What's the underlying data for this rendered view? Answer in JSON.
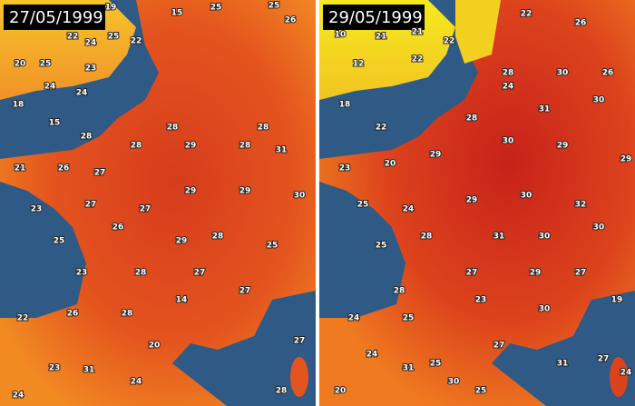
{
  "panels": [
    {
      "date": "27/05/1999",
      "stations": [
        19,
        15,
        25,
        25,
        26,
        22,
        24,
        25,
        22,
        20,
        25,
        23,
        18,
        24,
        24,
        15,
        28,
        28,
        28,
        21,
        26,
        27,
        28,
        29,
        28,
        31,
        23,
        27,
        27,
        29,
        29,
        30,
        25,
        26,
        29,
        28,
        25,
        23,
        28,
        27,
        27,
        22,
        26,
        28,
        14,
        20,
        23,
        31,
        24,
        28,
        24,
        27
      ]
    },
    {
      "date": "29/05/1999",
      "stations": [
        10,
        21,
        21,
        22,
        22,
        26,
        12,
        22,
        28,
        30,
        26,
        18,
        22,
        28,
        24,
        31,
        30,
        23,
        20,
        29,
        30,
        29,
        29,
        25,
        24,
        29,
        30,
        32,
        25,
        28,
        31,
        30,
        30,
        28,
        27,
        29,
        27,
        19,
        24,
        25,
        23,
        30,
        24,
        25,
        27,
        31,
        30,
        31,
        27,
        24,
        20,
        25
      ]
    }
  ]
}
